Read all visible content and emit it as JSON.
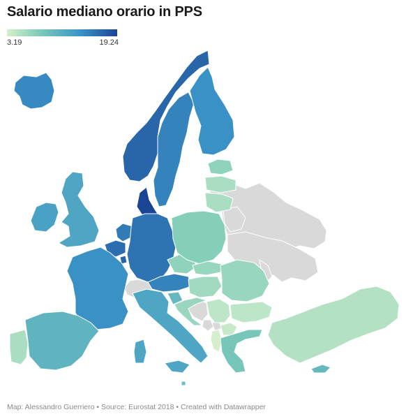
{
  "title": "Salario mediano orario in PPS",
  "legend": {
    "min_label": "3.19",
    "max_label": "19.24",
    "min": 3.19,
    "max": 19.24,
    "colors": [
      "#d5efcc",
      "#7ccbb8",
      "#3c97c9",
      "#1b4594"
    ]
  },
  "nodata_color": "#d9d9d9",
  "footer": "Map: Alessandro Guerriero • Source: Eurostat 2018 • Created with Datawrapper",
  "countries": {
    "norway": 17.0,
    "denmark": 19.24,
    "sweden": 15.0,
    "finland": 14.0,
    "iceland": 14.5,
    "uk": 12.0,
    "ireland": 12.5,
    "netherlands": 15.5,
    "belgium": 16.5,
    "luxembourg": 17.0,
    "germany": 16.0,
    "france": 14.0,
    "austria": 15.0,
    "switzerland": null,
    "italy": 12.0,
    "spain": 10.5,
    "portugal": 5.5,
    "poland": 7.5,
    "czechia": 7.0,
    "slovakia": 6.5,
    "hungary": 6.0,
    "slovenia": 10.0,
    "croatia": 6.5,
    "romania": 6.5,
    "bulgaria": 4.5,
    "greece": 8.5,
    "albania": 3.19,
    "serbia": 4.5,
    "north_macedonia": 4.0,
    "bosnia": null,
    "montenegro": null,
    "kosovo": null,
    "estonia": 7.0,
    "latvia": 5.5,
    "lithuania": 5.5,
    "turkey": 5.0,
    "cyprus": 10.0,
    "malta": 9.5,
    "russia": null,
    "belarus": null,
    "ukraine": null,
    "moldova": null
  }
}
